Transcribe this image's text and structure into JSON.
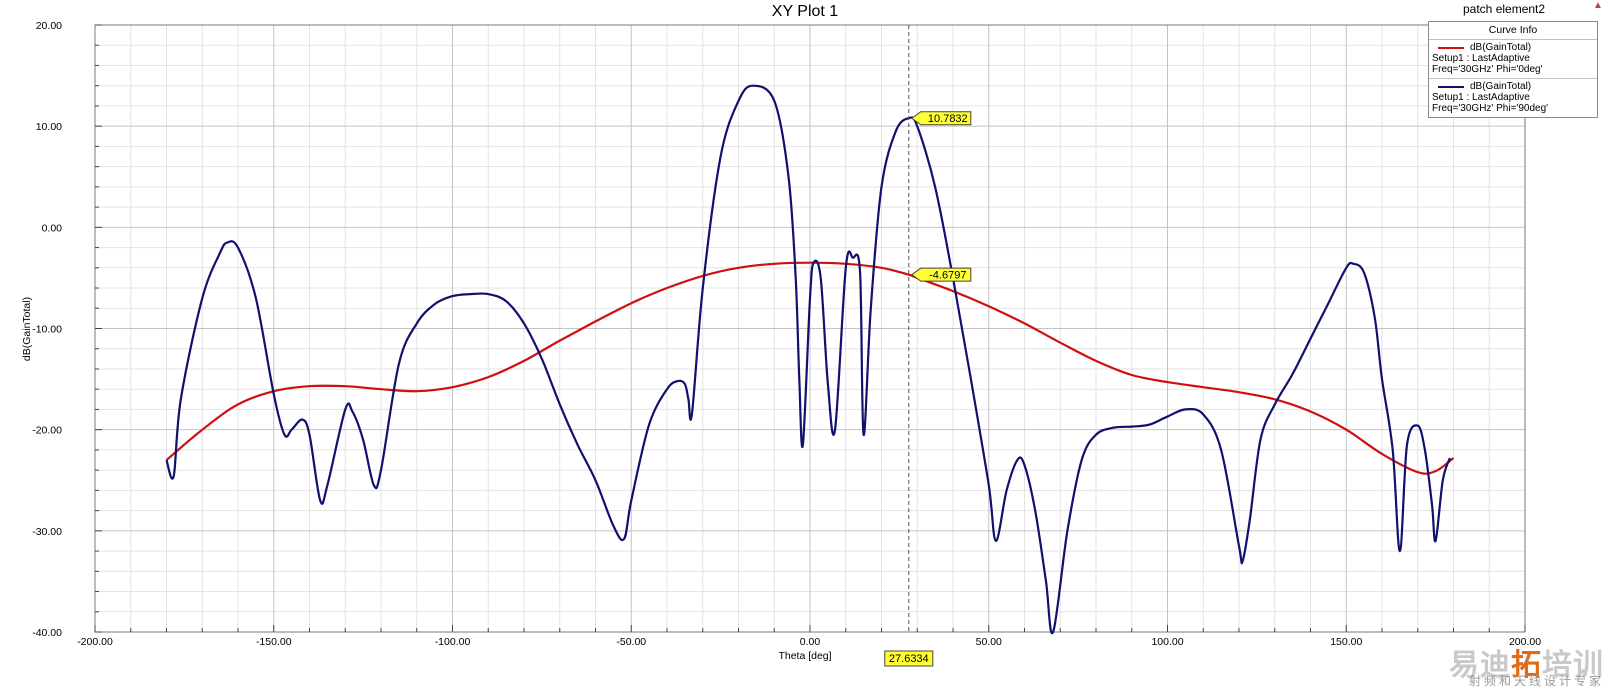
{
  "window": {
    "project_name": "patch element2",
    "resize_glyph": "▲"
  },
  "legend": {
    "title": "Curve Info",
    "items": [
      {
        "name": "dB(GainTotal)",
        "setup": "Setup1 : LastAdaptive",
        "params": "Freq='30GHz' Phi='0deg'",
        "color": "#d01010"
      },
      {
        "name": "dB(GainTotal)",
        "setup": "Setup1 : LastAdaptive",
        "params": "Freq='30GHz' Phi='90deg'",
        "color": "#10106e"
      }
    ]
  },
  "marker": {
    "x": 27.6334,
    "x_label": "27.6334",
    "values": [
      {
        "label": "-4.6797",
        "value": -4.6797
      },
      {
        "label": "10.7832",
        "value": 10.7832
      }
    ]
  },
  "watermark": {
    "main_a": "易迪",
    "main_b": "拓",
    "main_c": "培训",
    "sub": "射频和天线设计专家"
  },
  "chart_data": {
    "type": "line",
    "title": "XY Plot 1",
    "xlabel": "Theta [deg]",
    "ylabel": "dB(GainTotal)",
    "xlim": [
      -200,
      200
    ],
    "ylim": [
      -40,
      20
    ],
    "xticks": [
      -200,
      -150,
      -100,
      -50,
      0,
      50,
      100,
      150,
      200
    ],
    "xtick_labels": [
      "-200.00",
      "-150.00",
      "-100.00",
      "-50.00",
      "0.00",
      "50.00",
      "100.00",
      "150.00",
      "200.00"
    ],
    "yticks": [
      20,
      10,
      0,
      -10,
      -20,
      -30,
      -40
    ],
    "ytick_labels": [
      "20.00",
      "10.00",
      "0.00",
      "-10.00",
      "-20.00",
      "-30.00",
      "-40.00"
    ],
    "grid": true,
    "legend_position": "top-right",
    "series": [
      {
        "name": "dB(GainTotal) Setup1 : LastAdaptive Freq='30GHz' Phi='0deg'",
        "color": "#d01010",
        "x": [
          -180,
          -170,
          -160,
          -150,
          -140,
          -130,
          -120,
          -110,
          -100,
          -90,
          -80,
          -70,
          -60,
          -50,
          -40,
          -30,
          -20,
          -10,
          0,
          10,
          20,
          27.6334,
          30,
          40,
          50,
          60,
          70,
          80,
          90,
          100,
          110,
          120,
          130,
          140,
          150,
          160,
          170,
          175,
          180
        ],
        "y": [
          -23,
          -20,
          -17.5,
          -16.2,
          -15.7,
          -15.7,
          -16,
          -16.2,
          -15.8,
          -14.8,
          -13.2,
          -11.2,
          -9.3,
          -7.5,
          -6,
          -4.8,
          -4,
          -3.6,
          -3.5,
          -3.6,
          -4,
          -4.6797,
          -5,
          -6.3,
          -7.8,
          -9.5,
          -11.4,
          -13.2,
          -14.6,
          -15.3,
          -15.8,
          -16.3,
          -17,
          -18.2,
          -20,
          -22.4,
          -24.2,
          -24.1,
          -22.8
        ]
      },
      {
        "name": "dB(GainTotal) Setup1 : LastAdaptive Freq='30GHz' Phi='90deg'",
        "color": "#10106e",
        "x": [
          -180,
          -178,
          -176,
          -170,
          -165,
          -163,
          -160,
          -155,
          -150,
          -147,
          -145,
          -142,
          -140,
          -137,
          -135,
          -130,
          -128,
          -125,
          -122,
          -120,
          -115,
          -110,
          -105,
          -100,
          -95,
          -90,
          -85,
          -80,
          -75,
          -70,
          -65,
          -60,
          -55,
          -52,
          -50,
          -45,
          -40,
          -37,
          -35,
          -34,
          -33,
          -30,
          -25,
          -20,
          -16,
          -10,
          -6,
          -4,
          -3,
          -2,
          0,
          1,
          3,
          5,
          7,
          10,
          12,
          14,
          15,
          17,
          20,
          24,
          27.6334,
          30,
          35,
          40,
          45,
          50,
          52,
          55,
          58,
          60,
          63,
          66,
          68,
          72,
          76,
          80,
          85,
          90,
          95,
          100,
          105,
          110,
          115,
          120,
          121,
          123,
          126,
          130,
          135,
          140,
          145,
          150,
          152,
          155,
          158,
          160,
          163,
          165,
          167,
          170,
          172,
          174,
          175,
          177,
          179
        ],
        "y": [
          -23,
          -24.6,
          -17,
          -7,
          -2.5,
          -1.5,
          -2,
          -7,
          -16.5,
          -20.5,
          -20,
          -19,
          -20.5,
          -27,
          -25.5,
          -18,
          -18.2,
          -21,
          -25.5,
          -24,
          -13.5,
          -9.5,
          -7.6,
          -6.8,
          -6.6,
          -6.6,
          -7.3,
          -9.5,
          -13,
          -17.5,
          -21.5,
          -25,
          -29.5,
          -30.8,
          -27,
          -19.5,
          -16,
          -15.2,
          -15.5,
          -17,
          -18.4,
          -6,
          7,
          12.5,
          14,
          12.5,
          5,
          -5,
          -15,
          -21.5,
          -7,
          -3.5,
          -5,
          -15.5,
          -20,
          -4,
          -3,
          -4.5,
          -20.5,
          -8,
          4,
          9.5,
          10.7832,
          10,
          4,
          -5,
          -15,
          -25.5,
          -31,
          -26,
          -23,
          -23.5,
          -28,
          -35,
          -40,
          -30,
          -23,
          -20.5,
          -19.8,
          -19.7,
          -19.5,
          -18.7,
          -18,
          -18.5,
          -22,
          -31.5,
          -33,
          -29,
          -21,
          -17.5,
          -14.5,
          -11,
          -7.5,
          -4,
          -3.6,
          -4.5,
          -9,
          -15,
          -22,
          -32,
          -21.5,
          -19.6,
          -22,
          -27.5,
          -31,
          -25,
          -22.8
        ]
      }
    ]
  }
}
